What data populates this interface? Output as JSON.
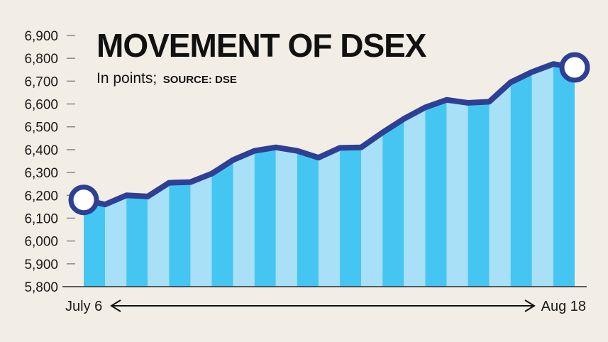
{
  "chart_data": {
    "type": "bar",
    "title": "MOVEMENT OF DSEX",
    "subtitle": "In points;",
    "source": "SOURCE: DSE",
    "x_start_label": "July 6",
    "x_end_label": "Aug 18",
    "y_ticks": [
      "6,900",
      "6,800",
      "6,700",
      "6,600",
      "6,500",
      "6,400",
      "6,300",
      "6,200",
      "6,100",
      "6,000",
      "5,900",
      "5,800"
    ],
    "ylim": [
      5800,
      6900
    ],
    "grid": false,
    "values": [
      6180,
      6160,
      6200,
      6195,
      6255,
      6258,
      6295,
      6355,
      6395,
      6410,
      6395,
      6365,
      6408,
      6410,
      6475,
      6535,
      6585,
      6618,
      6605,
      6610,
      6695,
      6740,
      6775,
      6760
    ],
    "colors": {
      "bar_dark": "#45c6f2",
      "bar_light": "#a8e0f8",
      "line": "#2e3f94",
      "marker_fill": "#ffffff",
      "text": "#111111",
      "background": "#f2eee6"
    }
  }
}
